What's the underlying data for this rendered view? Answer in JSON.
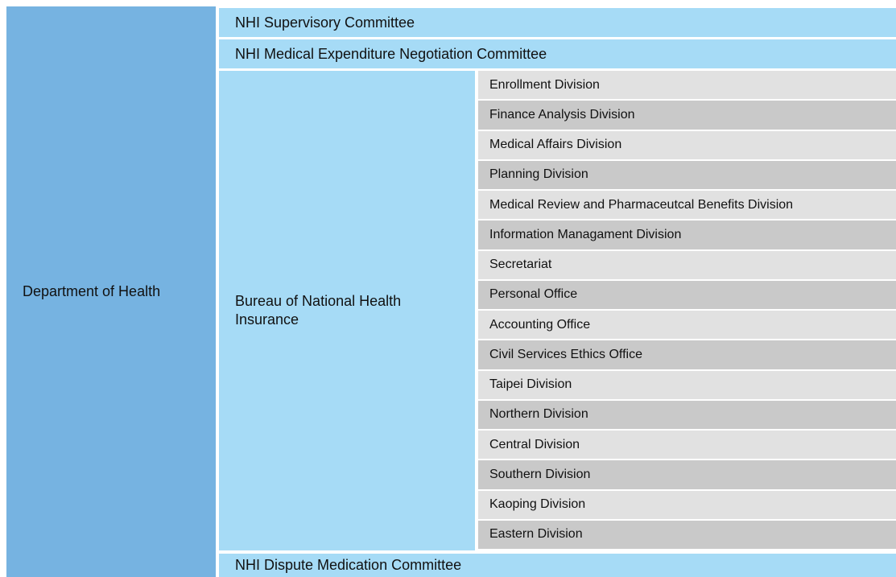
{
  "left": "Department of Health",
  "committees": [
    "NHI Supervisory Committee",
    "NHI Medical Expenditure Negotiation Committee"
  ],
  "bureau": {
    "label": "Bureau of National Health Insurance",
    "divisions": [
      "Enrollment Division",
      "Finance Analysis Division",
      "Medical Affairs Division",
      "Planning Division",
      "Medical Review and Pharmaceutcal Benefits Division",
      "Information Managament Division",
      "Secretariat",
      "Personal Office",
      "Accounting Office",
      "Civil Services Ethics Office",
      "Taipei Division",
      "Northern Division",
      "Central Division",
      "Southern Division",
      "Kaoping Division",
      "Eastern Division"
    ]
  },
  "bottom": "NHI Dispute Medication Committee"
}
